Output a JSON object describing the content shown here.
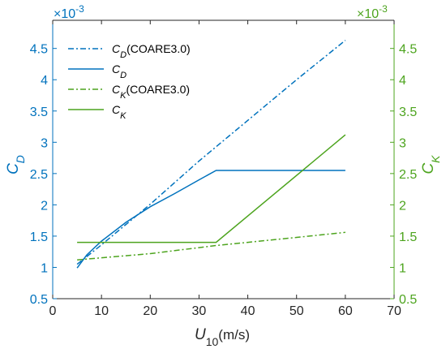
{
  "colors": {
    "left_axis": "#0072BD",
    "right_axis": "#4DA41E",
    "box": "#262626"
  },
  "chart_data": {
    "type": "line",
    "x_axis": {
      "label_main": "U",
      "label_sub": "10",
      "label_unit": "(m/s)",
      "range": [
        0,
        70
      ],
      "ticks": [
        0,
        10,
        20,
        30,
        40,
        50,
        60,
        70
      ],
      "tick_labels": [
        "0",
        "10",
        "20",
        "30",
        "40",
        "50",
        "60",
        "70"
      ]
    },
    "y_left": {
      "label_main": "C",
      "label_sub": "D",
      "range": [
        0.5,
        4.95
      ],
      "ticks": [
        0.5,
        1,
        1.5,
        2,
        2.5,
        3,
        3.5,
        4,
        4.5
      ],
      "tick_labels": [
        "0.5",
        "1",
        "1.5",
        "2",
        "2.5",
        "3",
        "3.5",
        "4",
        "4.5"
      ],
      "exponent_base": "×10",
      "exponent_power": "-3"
    },
    "y_right": {
      "label_main": "C",
      "label_sub": "K",
      "range": [
        0.5,
        4.95
      ],
      "ticks": [
        0.5,
        1,
        1.5,
        2,
        2.5,
        3,
        3.5,
        4,
        4.5
      ],
      "tick_labels": [
        "0.5",
        "1",
        "1.5",
        "2",
        "2.5",
        "3",
        "3.5",
        "4",
        "4.5"
      ],
      "exponent_base": "×10",
      "exponent_power": "-3"
    },
    "grid": false,
    "legend_position": "top-left",
    "series": [
      {
        "name_main": "C",
        "name_sub": "D",
        "name_suffix": "(COARE3.0)",
        "axis": "left",
        "style": "dashdot",
        "color": "#0072BD",
        "x": [
          5,
          10,
          20,
          30,
          40,
          50,
          60
        ],
        "y": [
          1.05,
          1.36,
          2.01,
          2.7,
          3.35,
          4.0,
          4.63
        ]
      },
      {
        "name_main": "C",
        "name_sub": "D",
        "name_suffix": "",
        "axis": "left",
        "style": "solid",
        "color": "#0072BD",
        "x": [
          5,
          7,
          10,
          15,
          20,
          25,
          30,
          33.5,
          40,
          50,
          60
        ],
        "y": [
          0.99,
          1.2,
          1.42,
          1.72,
          1.97,
          2.18,
          2.4,
          2.55,
          2.55,
          2.55,
          2.55
        ]
      },
      {
        "name_main": "C",
        "name_sub": "K",
        "name_suffix": "(COARE3.0)",
        "axis": "right",
        "style": "dashdot",
        "color": "#4DA41E",
        "x": [
          5,
          20,
          33.5,
          40,
          50,
          60
        ],
        "y": [
          1.12,
          1.22,
          1.35,
          1.4,
          1.48,
          1.56
        ]
      },
      {
        "name_main": "C",
        "name_sub": "K",
        "name_suffix": "",
        "axis": "right",
        "style": "solid",
        "color": "#4DA41E",
        "x": [
          5,
          33.5,
          60
        ],
        "y": [
          1.4,
          1.4,
          3.12
        ]
      }
    ]
  }
}
